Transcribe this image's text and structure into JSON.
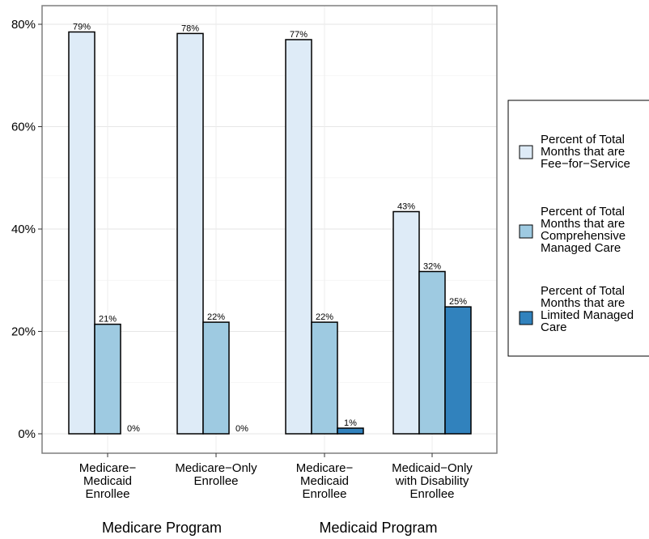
{
  "chart_data": {
    "type": "bar",
    "ylim": [
      0,
      84
    ],
    "yticks": [
      0,
      20,
      40,
      60,
      80
    ],
    "ytick_labels": [
      "0%",
      "20%",
      "40%",
      "60%",
      "80%"
    ],
    "grid": true,
    "legend_position": "right",
    "categories": [
      [
        "Medicare−",
        "Medicaid",
        "Enrollee"
      ],
      [
        "Medicare−Only",
        "Enrollee"
      ],
      [
        "Medicare−",
        "Medicaid",
        "Enrollee"
      ],
      [
        "Medicaid−Only",
        "with Disability",
        "Enrollee"
      ]
    ],
    "groups": [
      {
        "label": "Medicare Program",
        "categories": [
          0,
          1
        ]
      },
      {
        "label": "Medicaid Program",
        "categories": [
          2,
          3
        ]
      }
    ],
    "series": [
      {
        "name": [
          "Percent of Total",
          "Months that are",
          "Fee−for−Service"
        ],
        "color": "#deebf7",
        "values": [
          78.5,
          78.2,
          77.0,
          43.4
        ],
        "labels": [
          "79%",
          "78%",
          "77%",
          "43%"
        ]
      },
      {
        "name": [
          "Percent of Total",
          "Months that are",
          "Comprehensive",
          "Managed Care"
        ],
        "color": "#9ecae1",
        "values": [
          21.4,
          21.8,
          21.8,
          31.7
        ],
        "labels": [
          "21%",
          "22%",
          "22%",
          "32%"
        ]
      },
      {
        "name": [
          "Percent of Total",
          "Months that are",
          "Limited Managed",
          "Care"
        ],
        "color": "#3182bd",
        "values": [
          0,
          0,
          1.1,
          24.8
        ],
        "labels": [
          "0%",
          "0%",
          "1%",
          "25%"
        ]
      }
    ]
  }
}
